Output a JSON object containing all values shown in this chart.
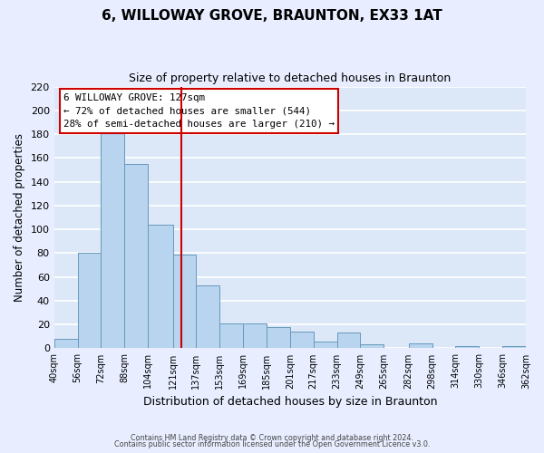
{
  "title": "6, WILLOWAY GROVE, BRAUNTON, EX33 1AT",
  "subtitle": "Size of property relative to detached houses in Braunton",
  "xlabel": "Distribution of detached houses by size in Braunton",
  "ylabel": "Number of detached properties",
  "footer_lines": [
    "Contains HM Land Registry data © Crown copyright and database right 2024.",
    "Contains public sector information licensed under the Open Government Licence v3.0."
  ],
  "bar_edges": [
    40,
    56,
    72,
    88,
    104,
    121,
    137,
    153,
    169,
    185,
    201,
    217,
    233,
    249,
    265,
    282,
    298,
    314,
    330,
    346,
    362
  ],
  "bar_heights": [
    8,
    80,
    181,
    155,
    104,
    79,
    53,
    21,
    21,
    18,
    14,
    6,
    13,
    3,
    0,
    4,
    0,
    2,
    0,
    2
  ],
  "bar_color": "#b8d4ee",
  "bar_edgecolor": "#6699bb",
  "vline_x": 127,
  "vline_color": "#cc0000",
  "annotation_title": "6 WILLOWAY GROVE: 127sqm",
  "annotation_line1": "← 72% of detached houses are smaller (544)",
  "annotation_line2": "28% of semi-detached houses are larger (210) →",
  "annotation_box_color": "#cc0000",
  "annotation_fill_color": "#ffffff",
  "ylim": [
    0,
    220
  ],
  "yticks": [
    0,
    20,
    40,
    60,
    80,
    100,
    120,
    140,
    160,
    180,
    200,
    220
  ],
  "fig_background_color": "#e8eeff",
  "plot_background_color": "#dce8f8",
  "grid_color": "#ffffff"
}
